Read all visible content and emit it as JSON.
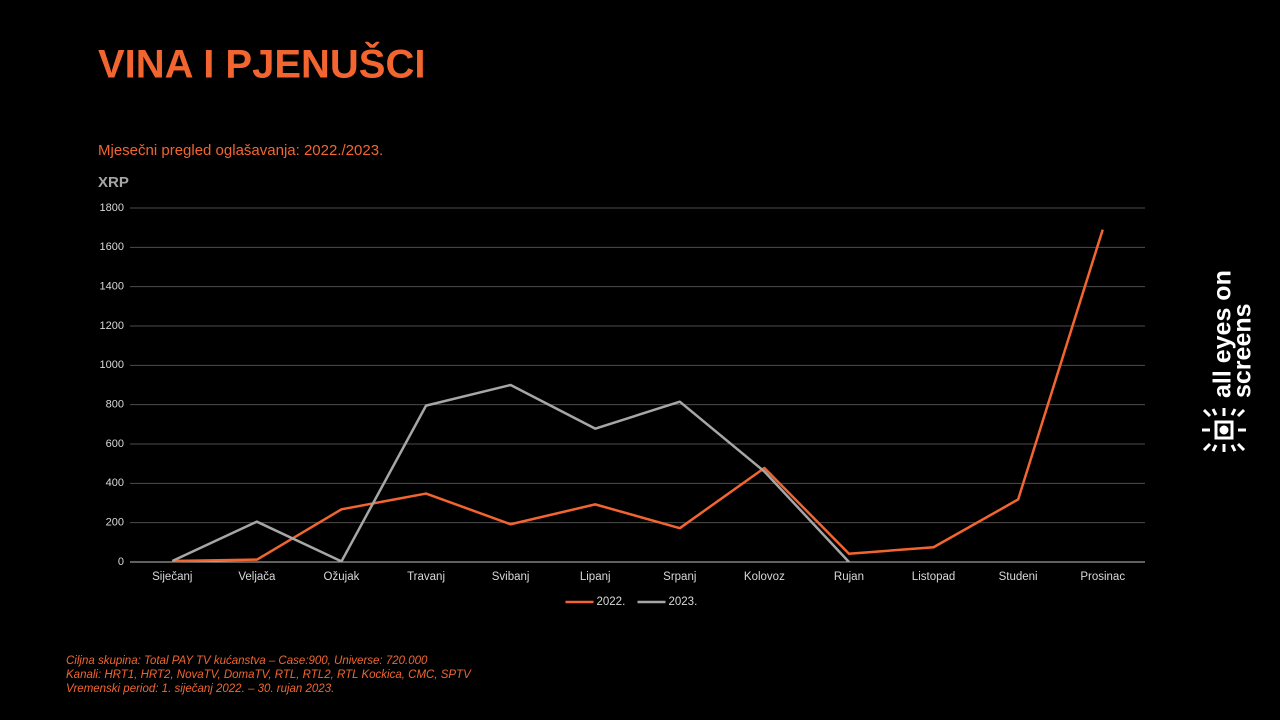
{
  "chart_data": {
    "type": "line",
    "title": "VINA I PJENUŠCI",
    "subtitle": "Mjesečni pregled oglašavanja:  2022./2023.",
    "y_label": "XRP",
    "categories": [
      "Siječanj",
      "Veljača",
      "Ožujak",
      "Travanj",
      "Svibanj",
      "Lipanj",
      "Srpanj",
      "Kolovoz",
      "Rujan",
      "Listopad",
      "Studeni",
      "Prosinac"
    ],
    "series": [
      {
        "name": "2022.",
        "color": "#f26530",
        "values": [
          5,
          12,
          268,
          348,
          192,
          293,
          172,
          478,
          42,
          75,
          318,
          1690
        ]
      },
      {
        "name": "2023.",
        "color": "#a6a6a6",
        "values": [
          5,
          205,
          3,
          795,
          900,
          678,
          815,
          460,
          0,
          null,
          null,
          null
        ]
      }
    ],
    "ylim": [
      0,
      1800
    ],
    "yticks": [
      0,
      200,
      400,
      600,
      800,
      1000,
      1200,
      1400,
      1600,
      1800
    ],
    "grid": true,
    "legend": "bottom"
  },
  "notes": [
    "Ciljna skupina:  Total PAY TV kućanstva – Case:900, Universe: 720.000",
    "Kanali: HRT1, HRT2, NovaTV, DomaTV, RTL, RTL2, RTL Kockica, CMC, SPTV",
    "Vremenski period: 1. siječanj 2022. – 30. rujan 2023."
  ],
  "logo": [
    "all eyes on",
    "screens"
  ]
}
